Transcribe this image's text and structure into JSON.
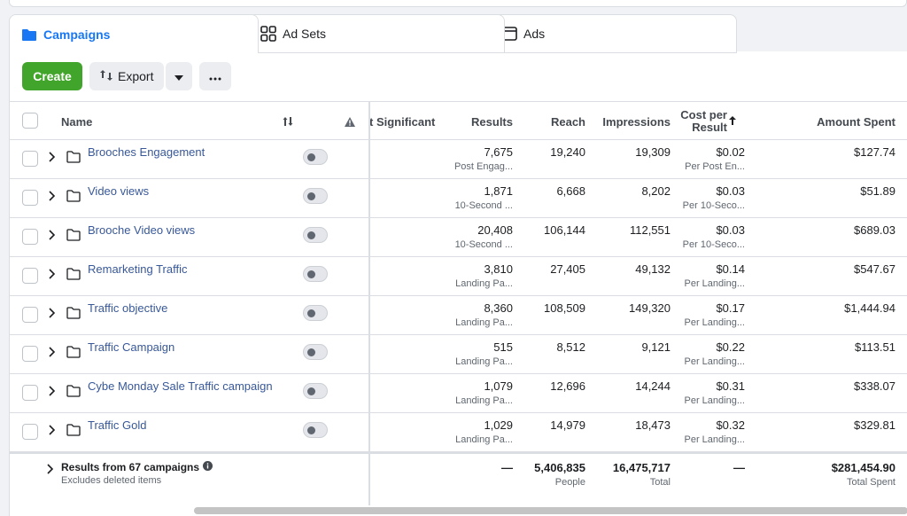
{
  "tabs": [
    {
      "label": "Campaigns",
      "icon": "folder-icon"
    },
    {
      "label": "Ad Sets",
      "icon": "grid-icon"
    },
    {
      "label": "Ads",
      "icon": "ad-window-icon"
    }
  ],
  "toolbar": {
    "create_label": "Create",
    "export_label": "Export"
  },
  "columns": {
    "name": "Name",
    "significant": "t Significant",
    "results": "Results",
    "reach": "Reach",
    "impressions": "Impressions",
    "cost_per_result": "Cost per Result",
    "amount_spent": "Amount Spent"
  },
  "rows": [
    {
      "name": "Brooches Engagement",
      "results": "7,675",
      "results_sub": "Post Engag...",
      "reach": "19,240",
      "impressions": "19,309",
      "cost": "$0.02",
      "cost_sub": "Per Post En...",
      "spent": "$127.74"
    },
    {
      "name": "Video views",
      "results": "1,871",
      "results_sub": "10-Second ...",
      "reach": "6,668",
      "impressions": "8,202",
      "cost": "$0.03",
      "cost_sub": "Per 10-Seco...",
      "spent": "$51.89"
    },
    {
      "name": "Brooche Video views",
      "results": "20,408",
      "results_sub": "10-Second ...",
      "reach": "106,144",
      "impressions": "112,551",
      "cost": "$0.03",
      "cost_sub": "Per 10-Seco...",
      "spent": "$689.03"
    },
    {
      "name": "Remarketing Traffic",
      "results": "3,810",
      "results_sub": "Landing Pa...",
      "reach": "27,405",
      "impressions": "49,132",
      "cost": "$0.14",
      "cost_sub": "Per Landing...",
      "spent": "$547.67"
    },
    {
      "name": "Traffic objective",
      "results": "8,360",
      "results_sub": "Landing Pa...",
      "reach": "108,509",
      "impressions": "149,320",
      "cost": "$0.17",
      "cost_sub": "Per Landing...",
      "spent": "$1,444.94"
    },
    {
      "name": "Traffic Campaign",
      "results": "515",
      "results_sub": "Landing Pa...",
      "reach": "8,512",
      "impressions": "9,121",
      "cost": "$0.22",
      "cost_sub": "Per Landing...",
      "spent": "$113.51"
    },
    {
      "name": "Cybe Monday Sale Traffic campaign",
      "results": "1,079",
      "results_sub": "Landing Pa...",
      "reach": "12,696",
      "impressions": "14,244",
      "cost": "$0.31",
      "cost_sub": "Per Landing...",
      "spent": "$338.07"
    },
    {
      "name": "Traffic Gold",
      "results": "1,029",
      "results_sub": "Landing Pa...",
      "reach": "14,979",
      "impressions": "18,473",
      "cost": "$0.32",
      "cost_sub": "Per Landing...",
      "spent": "$329.81"
    }
  ],
  "footer": {
    "title": "Results from 67 campaigns",
    "subtitle": "Excludes deleted items",
    "results": "—",
    "reach": "5,406,835",
    "reach_sub": "People",
    "impressions": "16,475,717",
    "impressions_sub": "Total",
    "cost": "—",
    "spent": "$281,454.90",
    "spent_sub": "Total Spent"
  }
}
